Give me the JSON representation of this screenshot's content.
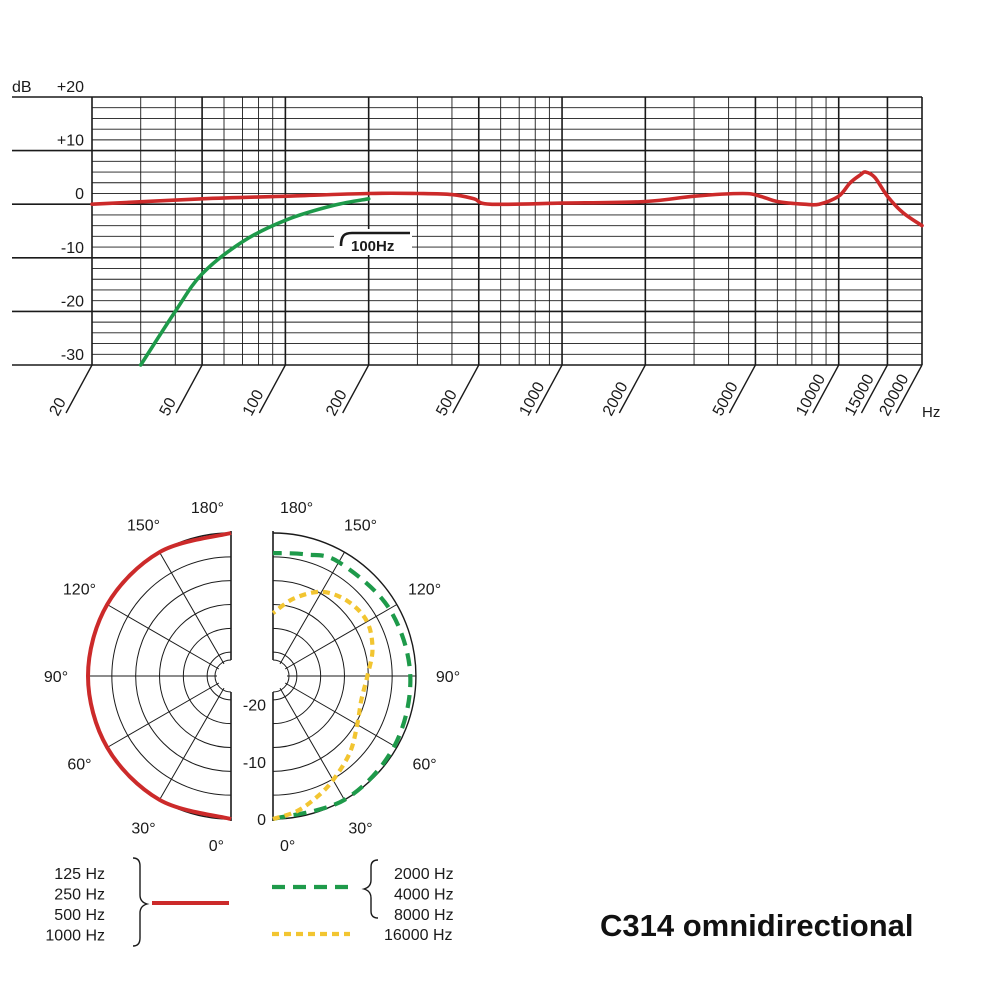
{
  "product_title": "C314 omnidirectional",
  "colors": {
    "low_freq": "#cc2a2a",
    "mid_high": "#1e9a4a",
    "very_high": "#f2c531",
    "grid": "#1a1a1a"
  },
  "chart_data": [
    {
      "type": "line",
      "xlabel": "Hz",
      "ylabel": "dB",
      "x_scale": "log",
      "xlim": [
        20,
        20000
      ],
      "ylim": [
        -30,
        20
      ],
      "x_ticks": [
        20,
        50,
        100,
        200,
        500,
        1000,
        2000,
        5000,
        10000,
        15000,
        20000
      ],
      "x_tick_labels": [
        "20",
        "50",
        "100",
        "200",
        "500",
        "1000",
        "2000",
        "5000",
        "10000",
        "15000",
        "20000"
      ],
      "y_ticks": [
        20,
        10,
        0,
        -10,
        -20,
        -30
      ],
      "y_tick_labels": [
        "+20",
        "+10",
        "0",
        "-10",
        "-20",
        "-30"
      ],
      "annotation": "100Hz",
      "grid": true,
      "series": [
        {
          "color": "#cc2a2a",
          "x": [
            20,
            50,
            100,
            200,
            300,
            400,
            480,
            550,
            1000,
            2000,
            3000,
            4500,
            5200,
            6000,
            7500,
            8500,
            10000,
            11000,
            12000,
            12500,
            13500,
            15000,
            17000,
            20000
          ],
          "y": [
            0,
            1,
            1.5,
            2,
            2,
            1.8,
            1,
            0,
            0.2,
            0.5,
            1.5,
            2,
            1.5,
            0.5,
            0,
            0,
            1.5,
            4,
            5.5,
            6,
            5,
            1.5,
            -1.5,
            -4
          ]
        },
        {
          "color": "#1e9a4a",
          "x": [
            30,
            40,
            50,
            70,
            100,
            150,
            200
          ],
          "y": [
            -30,
            -20,
            -13,
            -7,
            -3,
            -0.2,
            1
          ]
        }
      ]
    },
    {
      "type": "polar",
      "angle_labels_left": [
        "180°",
        "150°",
        "120°",
        "90°",
        "60°",
        "30°",
        "0°"
      ],
      "angle_labels_right": [
        "180°",
        "150°",
        "120°",
        "90°",
        "60°",
        "30°",
        "0°"
      ],
      "level_labels": [
        "-20",
        "-10",
        "0"
      ],
      "legend": [
        {
          "frequencies": [
            "125 Hz",
            "250 Hz",
            "500 Hz",
            "1000 Hz"
          ],
          "style": "solid",
          "color": "#cc2a2a"
        },
        {
          "frequencies": [
            "2000 Hz",
            "4000 Hz",
            "8000 Hz"
          ],
          "style": "dashed",
          "color": "#1e9a4a"
        },
        {
          "frequencies": [
            "16000 Hz"
          ],
          "style": "dashed",
          "color": "#f2c531"
        }
      ],
      "series": [
        {
          "color": "#cc2a2a",
          "side": "left",
          "angles": [
            0,
            30,
            60,
            90,
            120,
            150,
            180
          ],
          "levels_db": [
            0,
            0,
            0,
            0,
            0,
            0,
            0
          ]
        },
        {
          "color": "#1e9a4a",
          "side": "right",
          "angles": [
            0,
            30,
            60,
            90,
            120,
            150,
            165,
            180
          ],
          "levels_db": [
            0,
            0,
            -0.5,
            -1,
            -1.5,
            -2,
            -3,
            -3.5
          ]
        },
        {
          "color": "#f2c531",
          "side": "right",
          "angles": [
            0,
            10,
            20,
            30,
            45,
            60,
            75,
            90,
            105,
            120,
            135,
            150,
            165,
            180
          ],
          "levels_db": [
            0,
            -1,
            -2.5,
            -4,
            -6,
            -8,
            -9,
            -8.5,
            -7,
            -6,
            -6.5,
            -8,
            -11,
            -14
          ]
        }
      ]
    }
  ]
}
